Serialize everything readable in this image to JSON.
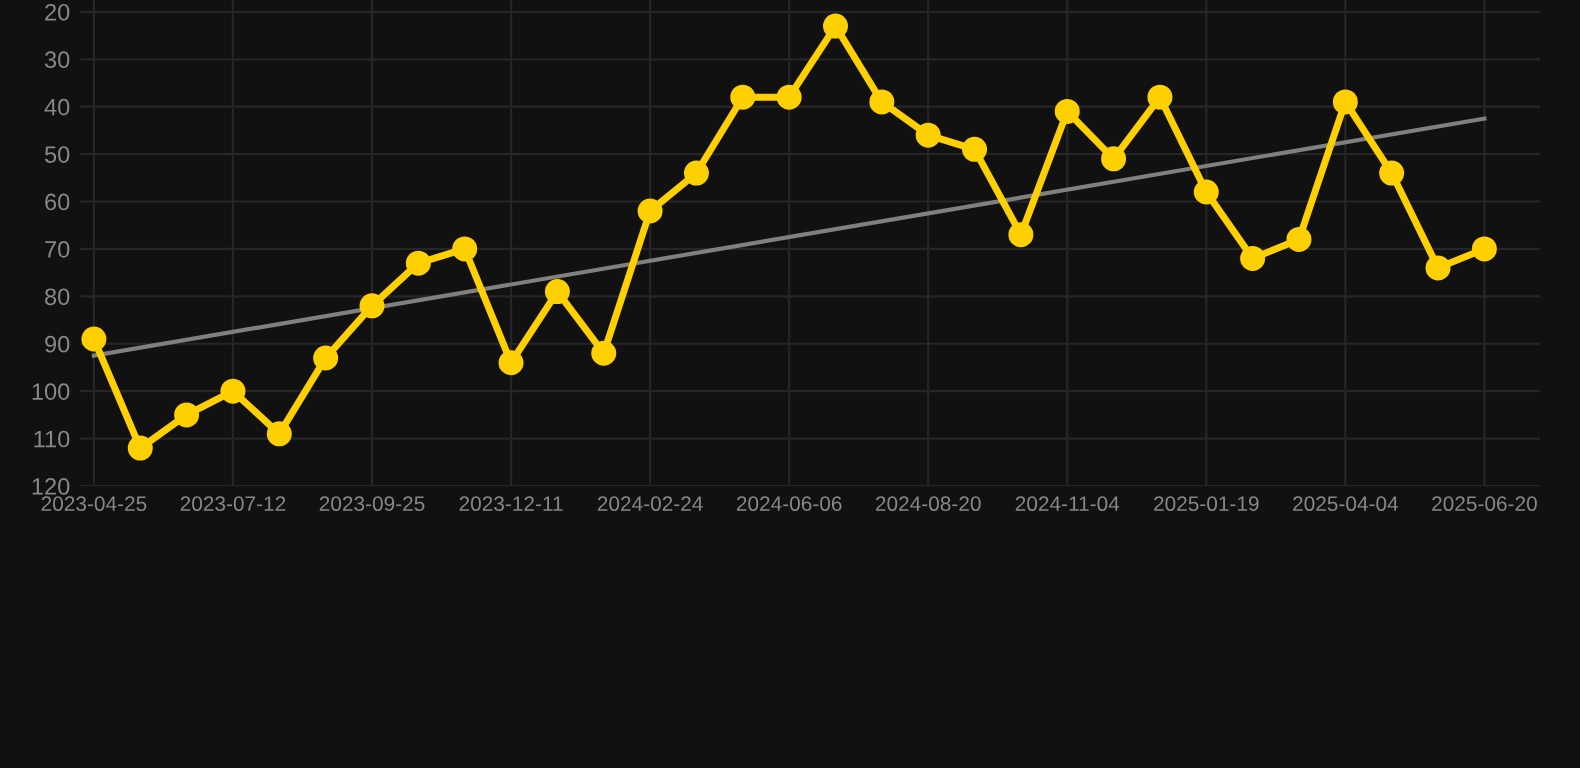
{
  "chart_data": {
    "type": "line",
    "categories": [
      "2023-04-25",
      null,
      null,
      "2023-07-12",
      null,
      null,
      "2023-09-25",
      null,
      null,
      "2023-12-11",
      null,
      null,
      "2024-02-24",
      null,
      null,
      "2024-06-06",
      null,
      null,
      "2024-08-20",
      null,
      null,
      "2024-11-04",
      null,
      null,
      "2025-01-19",
      null,
      null,
      "2025-04-04",
      null,
      null,
      "2025-06-20"
    ],
    "series": [
      {
        "color": "#ffd000",
        "marker": "circle",
        "values": [
          89,
          112,
          105,
          100,
          109,
          93,
          82,
          73,
          70,
          94,
          79,
          92,
          62,
          54,
          38,
          38,
          23,
          39,
          46,
          49,
          67,
          41,
          51,
          38,
          58,
          72,
          68,
          39,
          54,
          74,
          70
        ]
      },
      {
        "color": "#808080",
        "marker": "none",
        "values": [
          92.5,
          null,
          null,
          null,
          null,
          null,
          null,
          null,
          null,
          null,
          null,
          null,
          null,
          null,
          null,
          null,
          null,
          null,
          null,
          null,
          null,
          null,
          null,
          null,
          null,
          null,
          null,
          null,
          null,
          null,
          42.5
        ]
      }
    ],
    "ylim": [
      120,
      17.5
    ],
    "yticks": [
      20,
      30,
      40,
      50,
      60,
      70,
      80,
      90,
      100,
      110,
      120
    ],
    "grid": true
  }
}
